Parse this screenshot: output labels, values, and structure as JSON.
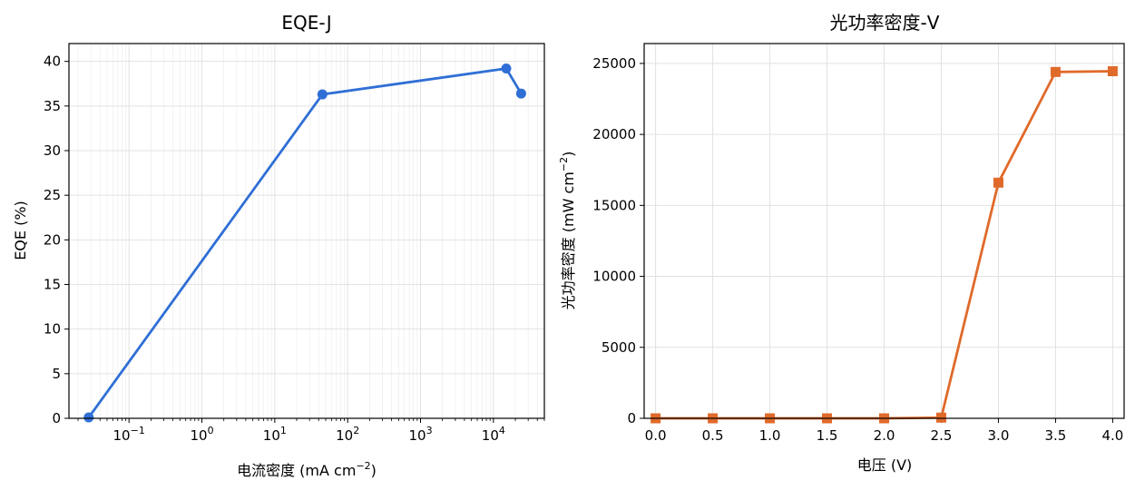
{
  "colors": {
    "left_series": "#2f6fd6",
    "right_series": "#e06a2a",
    "grid": "#e2e2e2",
    "axis": "#000000"
  },
  "chart_data": [
    {
      "type": "line",
      "title": "EQE-J",
      "xlabel": {
        "base": "电流密度 (mA cm",
        "exp": "−2",
        "tail": ")"
      },
      "ylabel": "EQE (%)",
      "x_scale": "log",
      "xlim": [
        0.015,
        50000
      ],
      "ylim": [
        0,
        42
      ],
      "xticks": [
        {
          "value": 0.1,
          "base": "10",
          "exp": "−1"
        },
        {
          "value": 1,
          "base": "10",
          "exp": "0"
        },
        {
          "value": 10,
          "base": "10",
          "exp": "1"
        },
        {
          "value": 100,
          "base": "10",
          "exp": "2"
        },
        {
          "value": 1000,
          "base": "10",
          "exp": "3"
        },
        {
          "value": 10000,
          "base": "10",
          "exp": "4"
        }
      ],
      "yticks": [
        "0",
        "5",
        "10",
        "15",
        "20",
        "25",
        "30",
        "35",
        "40"
      ],
      "grid": true,
      "marker": "circle",
      "series": [
        {
          "x": [
            0.028,
            45,
            15000,
            24000
          ],
          "y": [
            0.1,
            36.3,
            39.2,
            36.4
          ]
        }
      ]
    },
    {
      "type": "line",
      "title": "光功率密度-V",
      "xlabel": {
        "base": "电压 (V)",
        "exp": "",
        "tail": ""
      },
      "ylabel": {
        "base": "光功率密度 (mW cm",
        "exp": "−2",
        "tail": ")"
      },
      "x_scale": "linear",
      "xlim": [
        -0.1,
        4.1
      ],
      "ylim": [
        0,
        26400
      ],
      "xticks": [
        "0.0",
        "0.5",
        "1.0",
        "1.5",
        "2.0",
        "2.5",
        "3.0",
        "3.5",
        "4.0"
      ],
      "yticks": [
        "0",
        "5000",
        "10000",
        "15000",
        "20000",
        "25000"
      ],
      "grid": true,
      "marker": "square",
      "series": [
        {
          "x": [
            0.0,
            0.5,
            1.0,
            1.5,
            2.0,
            2.5,
            3.0,
            3.5,
            4.0
          ],
          "y": [
            0,
            0,
            0,
            0,
            0,
            50,
            16600,
            24400,
            24450
          ]
        }
      ]
    }
  ]
}
